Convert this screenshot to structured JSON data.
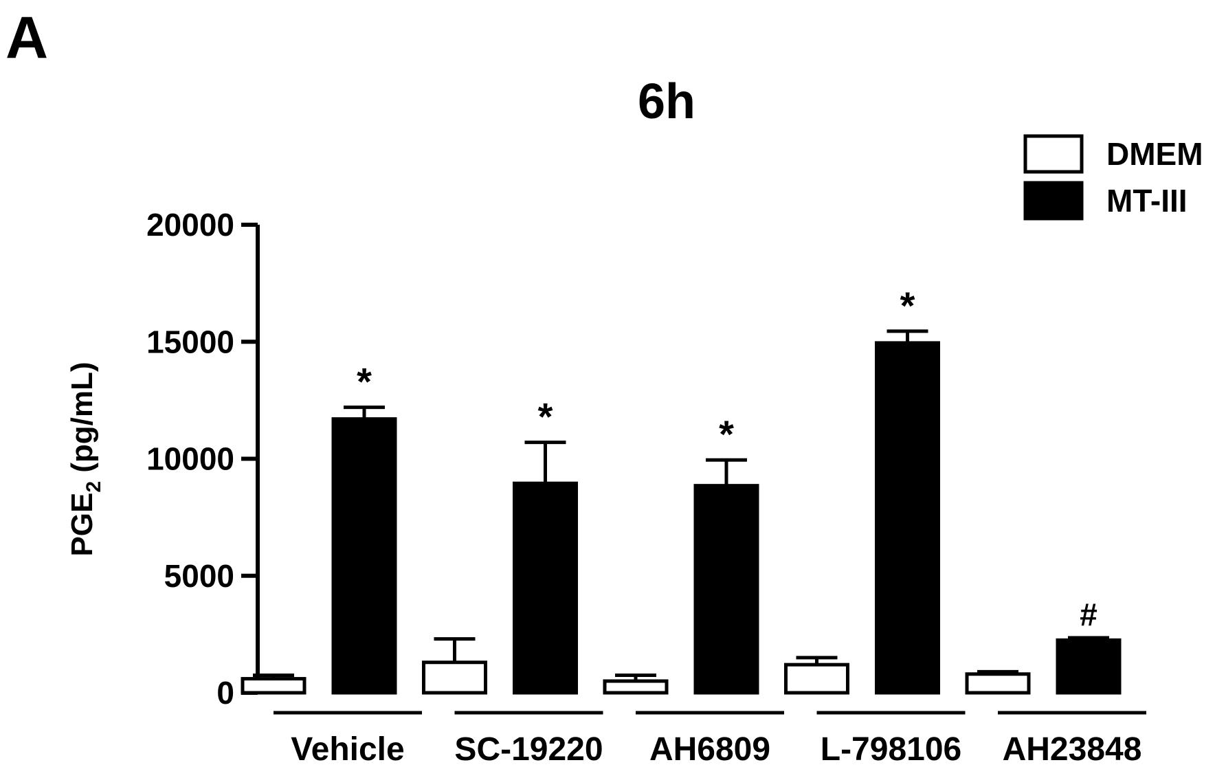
{
  "panel_label": "A",
  "legend": {
    "items": [
      {
        "name": "DMEM",
        "fill": "#ffffff"
      },
      {
        "name": "MT-III",
        "fill": "#000000"
      }
    ]
  },
  "chart_data": {
    "type": "bar",
    "title": "6h",
    "ylabel": "PGE",
    "ylabel_subscript": "2",
    "ylabel_unit": " (pg/mL)",
    "xlabel": "",
    "ylim": [
      0,
      20000
    ],
    "yticks": [
      0,
      5000,
      10000,
      15000,
      20000
    ],
    "ytick_labels": [
      "0",
      "5000",
      "10000",
      "15000",
      "20000"
    ],
    "categories": [
      "Vehicle",
      "SC-19220",
      "AH6809",
      "L-798106",
      "AH23848"
    ],
    "series": [
      {
        "name": "DMEM",
        "color": "#ffffff",
        "values": [
          600,
          1300,
          500,
          1200,
          800
        ],
        "errors": [
          150,
          1000,
          250,
          300,
          100
        ]
      },
      {
        "name": "MT-III",
        "color": "#000000",
        "values": [
          11700,
          8950,
          8850,
          14950,
          2250
        ],
        "errors": [
          500,
          1750,
          1100,
          500,
          100
        ]
      }
    ],
    "annotations": [
      {
        "category": "Vehicle",
        "series": "MT-III",
        "text": "*"
      },
      {
        "category": "SC-19220",
        "series": "MT-III",
        "text": "*"
      },
      {
        "category": "AH6809",
        "series": "MT-III",
        "text": "*"
      },
      {
        "category": "L-798106",
        "series": "MT-III",
        "text": "*"
      },
      {
        "category": "AH23848",
        "series": "MT-III",
        "text": "#"
      }
    ],
    "grid": false,
    "legend_position": "top-right"
  }
}
